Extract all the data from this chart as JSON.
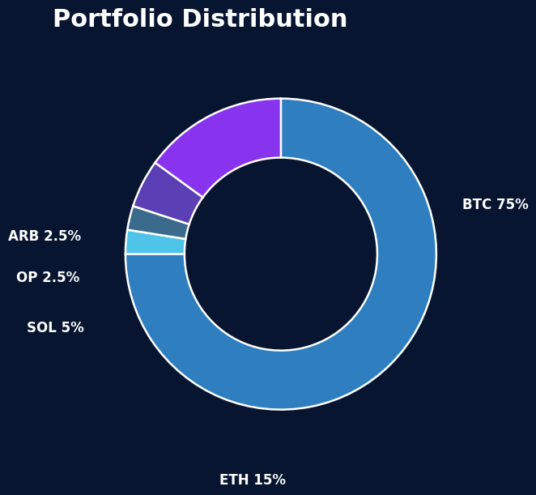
{
  "title": "Portfolio Distribution",
  "background_color": "#071530",
  "values": [
    75,
    2.5,
    2.5,
    5,
    15
  ],
  "colors": [
    "#2e7ec0",
    "#4ec4e8",
    "#3a6a8c",
    "#5a3fb5",
    "#8833ee"
  ],
  "label_texts": [
    "BTC 75%",
    "ARB 2.5%",
    "OP 2.5%",
    "SOL 5%",
    "ETH 15%"
  ],
  "wedge_edge_color": "#ffffff",
  "wedge_edge_width": 1.8,
  "title_fontsize": 22,
  "title_color": "#ffffff",
  "label_fontsize": 12,
  "label_color": "#ffffff",
  "label_fontweight": "bold"
}
